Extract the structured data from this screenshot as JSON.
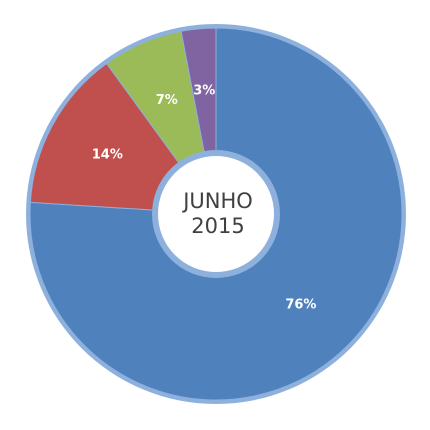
{
  "chart_data": {
    "type": "pie",
    "variant": "donut",
    "center_label": [
      "JUNHO",
      "2015"
    ],
    "slices": [
      {
        "value": 76,
        "label": "76%",
        "color": "#4f81bd"
      },
      {
        "value": 14,
        "label": "14%",
        "color": "#c0504d"
      },
      {
        "value": 7,
        "label": "7%",
        "color": "#9bbb59"
      },
      {
        "value": 3,
        "label": "3%",
        "color": "#8064a2"
      }
    ],
    "ring_color": "#8eb0dc",
    "start_angle": "12 o'clock",
    "direction": "clockwise",
    "legend": "none"
  }
}
